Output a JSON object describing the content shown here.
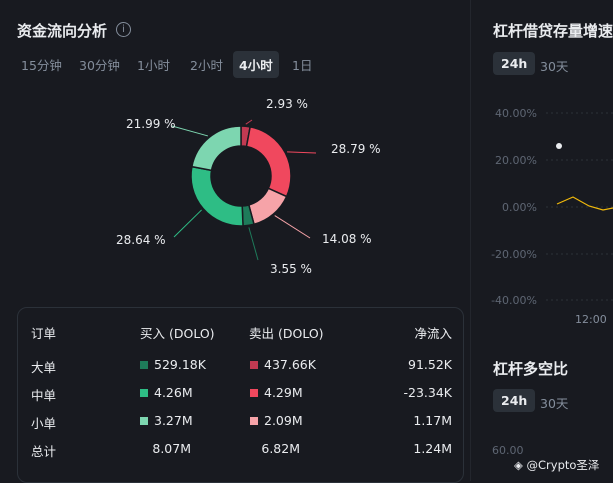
{
  "left_panel": {
    "title": "资金流向分析",
    "info_icon": "i",
    "tabs": [
      "15分钟",
      "30分钟",
      "1小时",
      "2小时",
      "4小时",
      "1日"
    ],
    "active_tab": "4小时"
  },
  "donut": {
    "segments": [
      {
        "label": "2.93 %",
        "value": 2.93,
        "color": "#c23a52"
      },
      {
        "label": "28.79 %",
        "value": 28.79,
        "color": "#f0485e"
      },
      {
        "label": "14.08 %",
        "value": 14.08,
        "color": "#f6a3a8"
      },
      {
        "label": "3.55 %",
        "value": 3.55,
        "color": "#1e7b5a"
      },
      {
        "label": "28.64 %",
        "value": 28.64,
        "color": "#2ebd85"
      },
      {
        "label": "21.99 %",
        "value": 21.99,
        "color": "#7dd6b0"
      }
    ]
  },
  "table": {
    "headers": [
      "订单",
      "买入 (DOLO)",
      "卖出 (DOLO)",
      "净流入"
    ],
    "rows": [
      {
        "name": "大单",
        "buy": "529.18K",
        "sell": "437.66K",
        "net": "91.52K",
        "buy_color": "#1e7b5a",
        "sell_color": "#c23a52"
      },
      {
        "name": "中单",
        "buy": "4.26M",
        "sell": "4.29M",
        "net": "-23.34K",
        "buy_color": "#2ebd85",
        "sell_color": "#f0485e"
      },
      {
        "name": "小单",
        "buy": "3.27M",
        "sell": "2.09M",
        "net": "1.17M",
        "buy_color": "#7dd6b0",
        "sell_color": "#f6a3a8"
      },
      {
        "name": "总计",
        "buy": "8.07M",
        "sell": "6.82M",
        "net": "1.24M"
      }
    ]
  },
  "right_panel": {
    "leverage_title": "杠杆借贷存量增速",
    "leverage_tabs": [
      "24h",
      "30天"
    ],
    "leverage_active": "24h",
    "y_ticks": [
      "40.00%",
      "20.00%",
      "0.00%",
      "-20.00%",
      "-40.00%"
    ],
    "x_tick": "12:00",
    "line_color": "#f0b90b",
    "ratio_title": "杠杆多空比",
    "ratio_tabs": [
      "24h",
      "30天"
    ],
    "ratio_active": "24h",
    "ratio_y_tick": "60.00"
  },
  "watermark": "@Crypto圣泽"
}
